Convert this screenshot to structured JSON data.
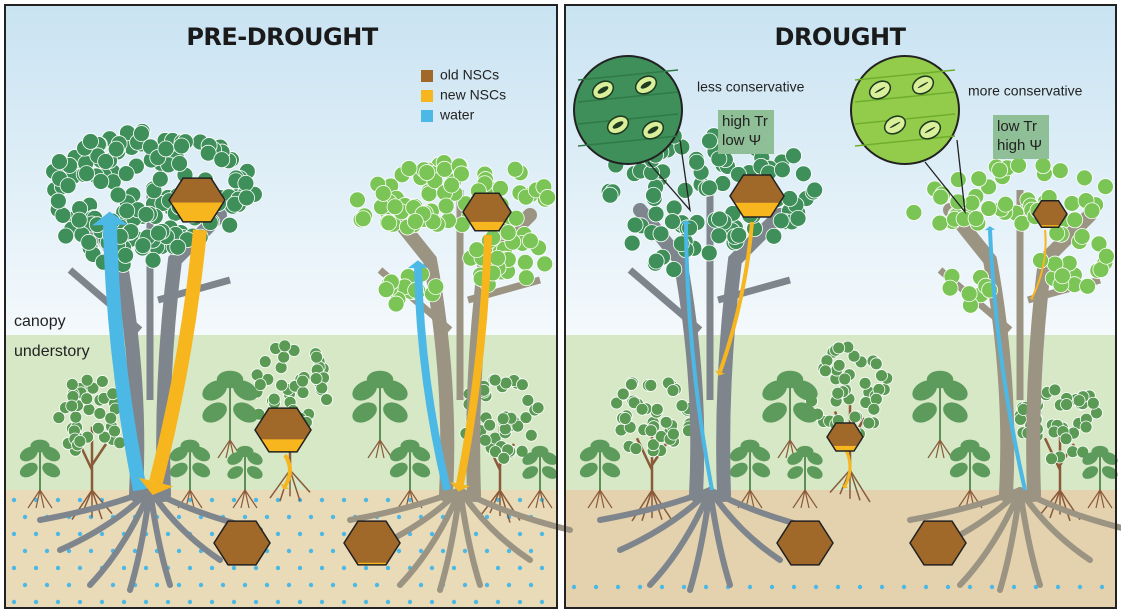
{
  "panels": [
    {
      "title": "PRE-DROUGHT"
    },
    {
      "title": "DROUGHT"
    }
  ],
  "legend": [
    {
      "label": "old NSCs",
      "color": "#a0692a"
    },
    {
      "label": "new NSCs",
      "color": "#f7b51e"
    },
    {
      "label": "water",
      "color": "#4cb8e6"
    }
  ],
  "layers": {
    "upper": "canopy",
    "lower": "understory"
  },
  "strategies": [
    {
      "label": "less conservative",
      "traits": [
        "high Tr",
        "low Ψ"
      ]
    },
    {
      "label": "more conservative",
      "traits": [
        "low Tr",
        "high Ψ"
      ]
    }
  ]
}
